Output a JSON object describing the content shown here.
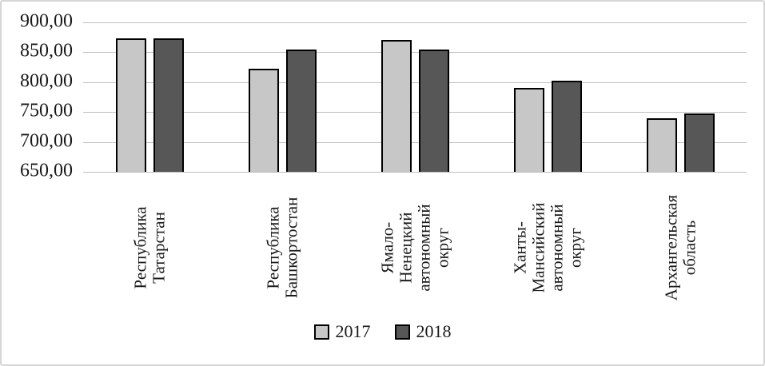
{
  "chart_data": {
    "type": "bar",
    "categories": [
      "Республика Татарстан",
      "Республика Башкортостан",
      "Ямало-Ненецкий автономный округ",
      "Ханты-Мансийский автономный округ",
      "Архангельская область"
    ],
    "category_label_lines": [
      [
        "Республика",
        "Татарстан"
      ],
      [
        "Республика",
        "Башкортостан"
      ],
      [
        "Ямало-",
        "Ненецкий",
        "автономный",
        "округ"
      ],
      [
        "Ханты-",
        "Мансийский",
        "автономный",
        "округ"
      ],
      [
        "Архангельская",
        "область"
      ]
    ],
    "series": [
      {
        "name": "2017",
        "color": "#c7c7c7",
        "values": [
          873,
          822,
          870,
          790,
          739
        ]
      },
      {
        "name": "2018",
        "color": "#575757",
        "values": [
          873,
          855,
          855,
          802,
          748
        ]
      }
    ],
    "ylim": [
      650,
      900
    ],
    "ytick_step": 50,
    "ytick_labels": [
      "900,00",
      "850,00",
      "800,00",
      "750,00",
      "700,00",
      "650,00"
    ],
    "grid": true,
    "legend_position": "bottom",
    "colors": {
      "bar_border": "#000000",
      "gridline": "#bfbfbf",
      "frame_border": "#d6d6d6",
      "text": "#1a1a1a"
    }
  }
}
